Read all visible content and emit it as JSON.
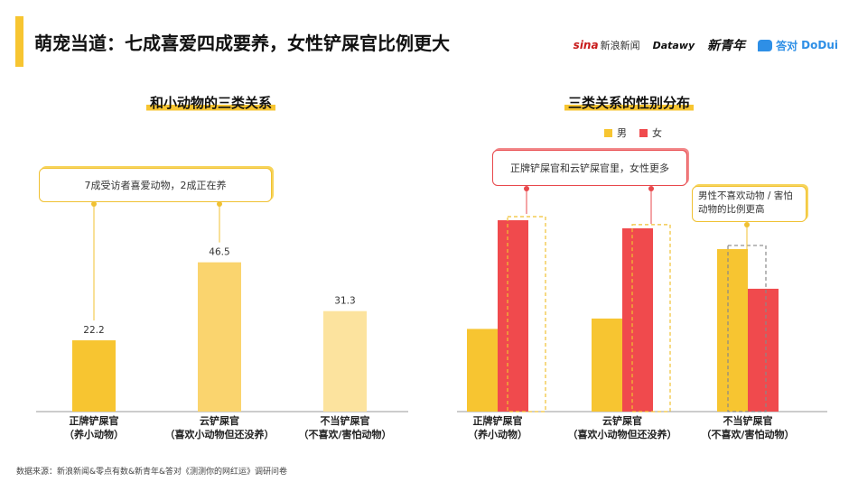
{
  "page": {
    "title": "萌宠当道：七成喜爱四成要养，女性铲屎官比例更大",
    "source": "数据来源：新浪新闻&零点有数&新青年&答对《测测你的网红运》调研问卷"
  },
  "logos": {
    "sina": "sina",
    "sina_cn": "新浪新闻",
    "dz": "Datawy",
    "xqn": "新青年",
    "dodui_cn": "答对",
    "dodui_en": "DoDui"
  },
  "colors": {
    "accent": "#f7c531",
    "male": "#f7c531",
    "female": "#f04a4d",
    "bar_dark": "#f7c531",
    "bar_mid": "#fad46e",
    "bar_light": "#fce39e"
  },
  "left_chart": {
    "callout": "7成受访者喜爱动物，2成正在养"
  },
  "right_chart": {
    "callout_female": "正牌铲屎官和云铲屎官里，女性更多",
    "callout_male": "男性不喜欢动物 / 害怕动物的比例更高"
  },
  "chart_data": [
    {
      "type": "bar",
      "title": "和小动物的三类关系",
      "categories": [
        [
          "正牌铲屎官",
          "（养小动物）"
        ],
        [
          "云铲屎官",
          "（喜欢小动物但还没养）"
        ],
        [
          "不当铲屎官",
          "（不喜欢/害怕动物）"
        ]
      ],
      "values": [
        22.2,
        46.5,
        31.3
      ],
      "value_labels": [
        "22.2",
        "46.5",
        "31.3"
      ],
      "ylim": [
        0,
        70
      ],
      "grid": false
    },
    {
      "type": "bar",
      "title": "三类关系的性别分布",
      "categories": [
        [
          "正牌铲屎官",
          "（养小动物）"
        ],
        [
          "云铲屎官",
          "（喜欢小动物但还没养）"
        ],
        [
          "不当铲屎官",
          "（不喜欢/害怕动物）"
        ]
      ],
      "series": [
        {
          "name": "男",
          "values": [
            17.5,
            19.7,
            34.4
          ]
        },
        {
          "name": "女",
          "values": [
            40.5,
            38.8,
            26.0
          ]
        }
      ],
      "ylim": [
        0,
        45
      ],
      "legend": "top-center",
      "grid": false
    }
  ]
}
